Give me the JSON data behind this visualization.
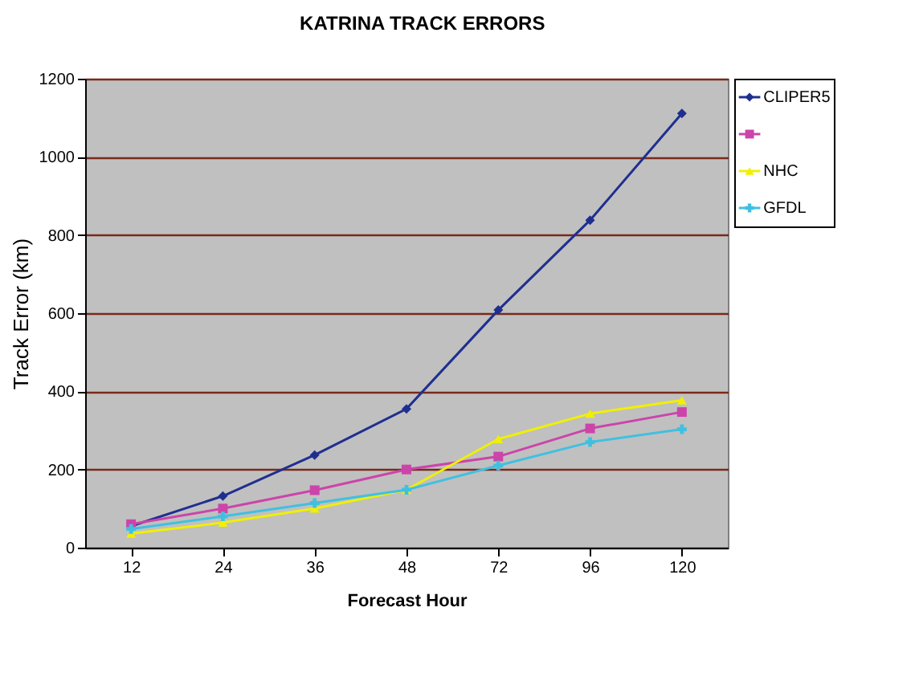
{
  "chart_data": {
    "type": "line",
    "title": "KATRINA TRACK ERRORS",
    "xlabel": "Forecast Hour",
    "ylabel": "Track Error (km)",
    "categories": [
      "12",
      "24",
      "36",
      "48",
      "72",
      "96",
      "120"
    ],
    "series": [
      {
        "name": "CLIPER5",
        "color": "#1f2f8f",
        "marker": "diamond",
        "values": [
          55,
          132,
          237,
          355,
          608,
          838,
          1111
        ]
      },
      {
        "color": "#cc44aa",
        "marker": "square",
        "values": [
          60,
          100,
          147,
          200,
          233,
          305,
          347
        ]
      },
      {
        "name": "NHC",
        "color": "#f0f000",
        "marker": "triangle",
        "values": [
          36,
          64,
          100,
          148,
          278,
          343,
          377
        ]
      },
      {
        "name": "GFDL",
        "color": "#40c0e0",
        "marker": "cross",
        "values": [
          48,
          80,
          114,
          148,
          210,
          270,
          303
        ]
      }
    ],
    "ylim": [
      0,
      1200
    ],
    "yticks": [
      0,
      200,
      400,
      600,
      800,
      1000,
      1200
    ],
    "grid": "y",
    "legend": "right"
  }
}
